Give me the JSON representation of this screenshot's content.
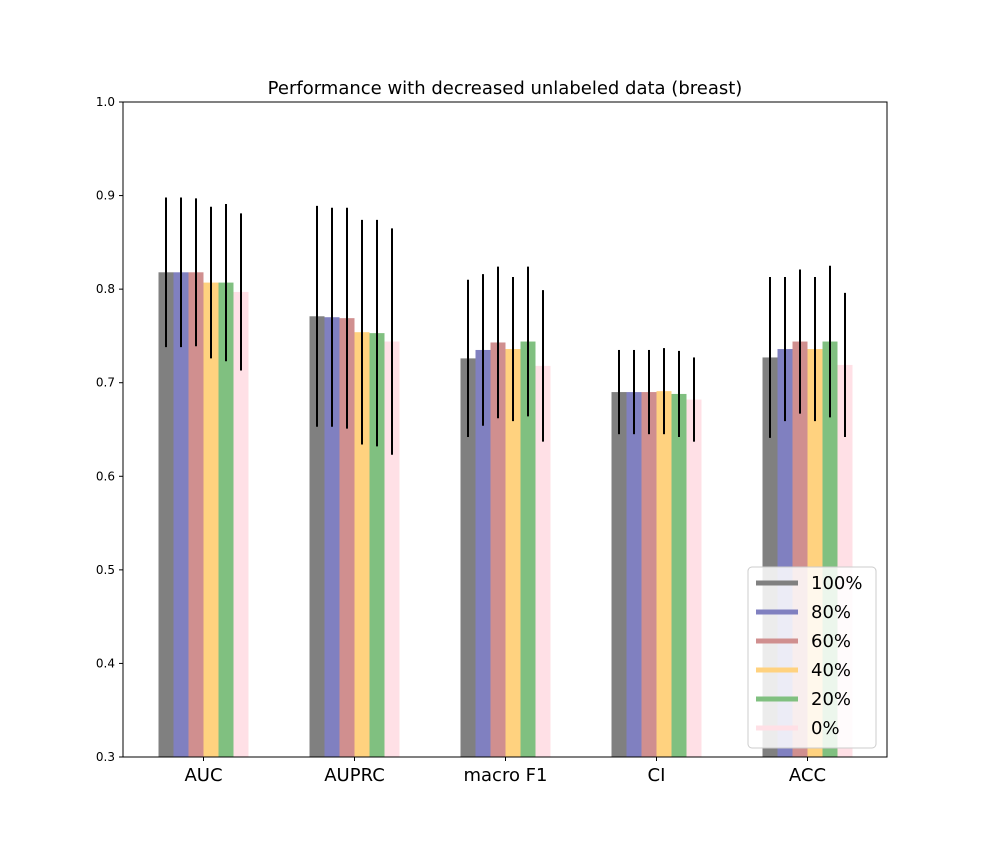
{
  "chart_data": {
    "type": "bar",
    "title": "Performance with decreased unlabeled data (breast)",
    "xlabel": "",
    "ylabel": "",
    "ylim": [
      0.3,
      1.0
    ],
    "yticks": [
      "0.3",
      "0.4",
      "0.5",
      "0.6",
      "0.7",
      "0.8",
      "0.9",
      "1.0"
    ],
    "categories": [
      "AUC",
      "AUPRC",
      "macro F1",
      "CI",
      "ACC"
    ],
    "grid": false,
    "legend_position": "lower-right",
    "series": [
      {
        "name": "100%",
        "color": "#808080",
        "values": [
          0.818,
          0.771,
          0.726,
          0.69,
          0.727
        ],
        "errors": [
          0.08,
          0.118,
          0.084,
          0.045,
          0.086
        ]
      },
      {
        "name": "80%",
        "color": "#8080c0",
        "values": [
          0.818,
          0.77,
          0.735,
          0.69,
          0.736
        ],
        "errors": [
          0.08,
          0.117,
          0.081,
          0.045,
          0.077
        ]
      },
      {
        "name": "60%",
        "color": "#d08f8f",
        "values": [
          0.818,
          0.769,
          0.743,
          0.69,
          0.744
        ],
        "errors": [
          0.079,
          0.118,
          0.081,
          0.045,
          0.077
        ]
      },
      {
        "name": "40%",
        "color": "#ffd27f",
        "values": [
          0.807,
          0.754,
          0.736,
          0.691,
          0.736
        ],
        "errors": [
          0.081,
          0.12,
          0.077,
          0.046,
          0.077
        ]
      },
      {
        "name": "20%",
        "color": "#80c080",
        "values": [
          0.807,
          0.753,
          0.744,
          0.688,
          0.744
        ],
        "errors": [
          0.084,
          0.121,
          0.08,
          0.046,
          0.081
        ]
      },
      {
        "name": "0%",
        "color": "#ffe0e6",
        "values": [
          0.797,
          0.744,
          0.718,
          0.682,
          0.719
        ],
        "errors": [
          0.084,
          0.121,
          0.081,
          0.045,
          0.077
        ]
      }
    ]
  }
}
